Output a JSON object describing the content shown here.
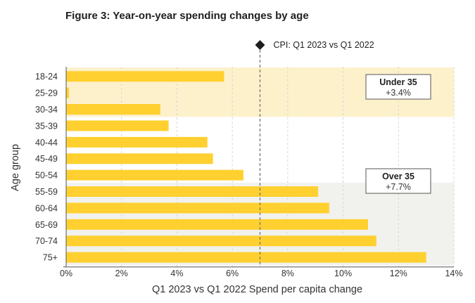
{
  "figure": {
    "title": "Figure 3: Year-on-year spending changes by age"
  },
  "chart_data": {
    "type": "bar",
    "orientation": "horizontal",
    "categories": [
      "18-24",
      "25-29",
      "30-34",
      "35-39",
      "40-44",
      "45-49",
      "50-54",
      "55-59",
      "60-64",
      "65-69",
      "70-74",
      "75+"
    ],
    "values": [
      5.7,
      0.1,
      3.4,
      3.7,
      5.1,
      5.3,
      6.4,
      9.1,
      9.5,
      10.9,
      11.2,
      13.0
    ],
    "xlabel": "Q1 2023 vs Q1 2022 Spend per capita change",
    "ylabel": "Age group",
    "xlim": [
      0,
      14
    ],
    "xticks": [
      "0%",
      "2%",
      "4%",
      "6%",
      "8%",
      "10%",
      "12%",
      "14%"
    ],
    "grid": "vertical dashed",
    "bar_color": "#FFD02F",
    "reference_line": {
      "value": 7.0,
      "label": "CPI: Q1 2023 vs Q1 2022"
    },
    "bands": [
      {
        "label": "Under 35",
        "value": "+3.4%",
        "from": "18-24",
        "to": "30-34",
        "color": "#FDF1CC"
      },
      {
        "label": "Over 35",
        "value": "+7.7%",
        "from": "55-59",
        "to": "75+",
        "color": "#F1F2EE"
      }
    ]
  }
}
